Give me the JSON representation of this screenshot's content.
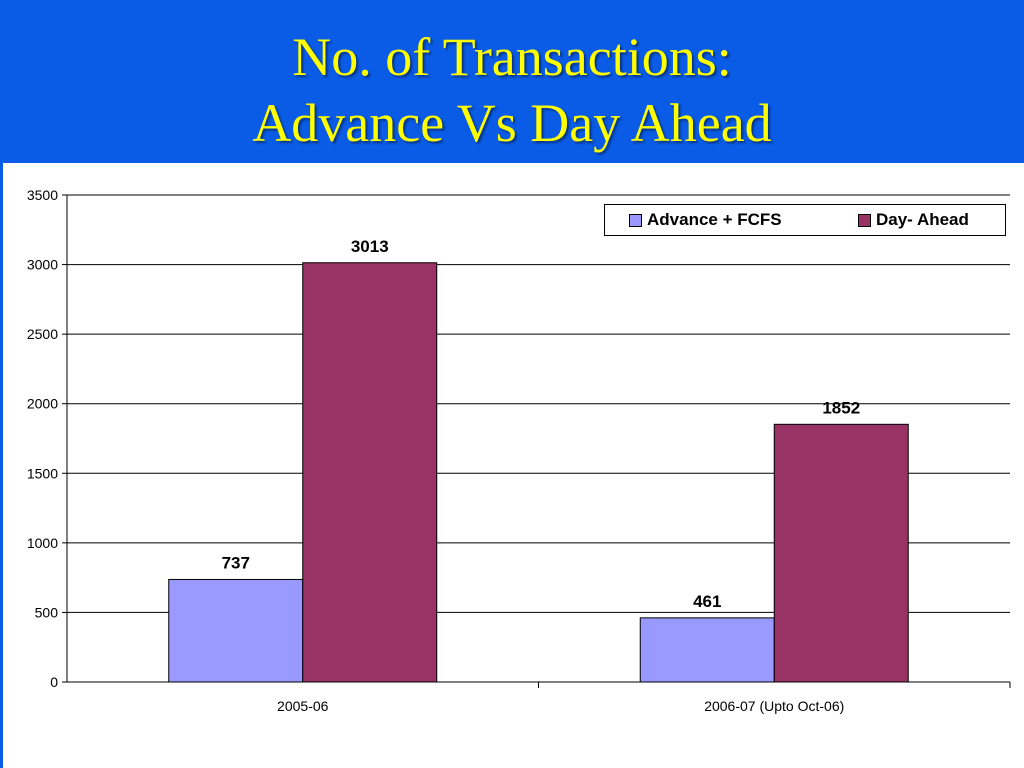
{
  "title": {
    "line1": "No. of Transactions:",
    "line2": "Advance Vs Day Ahead"
  },
  "chart_data": {
    "type": "bar",
    "categories": [
      "2005-06",
      "2006-07 (Upto Oct-06)"
    ],
    "series": [
      {
        "name": "Advance + FCFS",
        "values": [
          737,
          461
        ],
        "color": "#9999ff"
      },
      {
        "name": "Day- Ahead",
        "values": [
          3013,
          1852
        ],
        "color": "#993366"
      }
    ],
    "ylim": [
      0,
      3500
    ],
    "yticks": [
      "0",
      "500",
      "1000",
      "1500",
      "2000",
      "2500",
      "3000",
      "3500"
    ],
    "data_labels": [
      [
        "737",
        "461"
      ],
      [
        "3013",
        "1852"
      ]
    ],
    "grid": true,
    "legend_position": "top-right",
    "xlabel": "",
    "ylabel": ""
  }
}
